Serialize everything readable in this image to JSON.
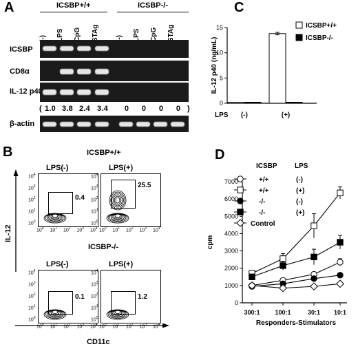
{
  "panelA": {
    "letter": "A",
    "group_wt": "ICSBP+/+",
    "group_ko": "ICSBP-/-",
    "lanes": [
      "(-)",
      "LPS",
      "CpG",
      "STAg",
      "(-)",
      "LPS",
      "CpG",
      "STAg"
    ],
    "rows": [
      "ICSBP",
      "CD8α",
      "IL-12 p40",
      "β-actin"
    ],
    "quant_open": "(",
    "quant": [
      "1.0",
      "3.8",
      "2.4",
      "3.4",
      "0",
      "0",
      "0",
      "0"
    ],
    "quant_close": ")"
  },
  "panelB": {
    "letter": "B",
    "group_wt": "ICSBP+/+",
    "group_ko": "ICSBP-/-",
    "plots": [
      {
        "title": "LPS(-)",
        "value": "0.4"
      },
      {
        "title": "LPS(+)",
        "value": "25.5"
      },
      {
        "title": "LPS(-)",
        "value": "0.1"
      },
      {
        "title": "LPS(+)",
        "value": "1.2"
      }
    ],
    "y_axis": "IL-12",
    "x_axis": "CD11c",
    "tick_base": "10",
    "tick_exps": [
      "0",
      "1",
      "2",
      "3",
      "4"
    ]
  },
  "panelC": {
    "letter": "C",
    "ylabel": "IL-12 p40 (ng/mL)",
    "lps_label": "LPS",
    "legend": [
      "ICSBP+/+",
      "ICSBP-/-"
    ]
  },
  "panelD": {
    "letter": "D",
    "ylabel": "cpm",
    "xlabel": "Responders-Stimulators",
    "header_icsbp": "ICSBP",
    "header_lps": "LPS",
    "legend": [
      {
        "icsbp": "+/+",
        "lps": "(-)"
      },
      {
        "icsbp": "+/+",
        "lps": "(+)"
      },
      {
        "icsbp": "-/-",
        "lps": "(-)"
      },
      {
        "icsbp": "-/-",
        "lps": "(+)"
      },
      {
        "icsbp": "Control",
        "lps": ""
      }
    ]
  },
  "chart_data": [
    {
      "type": "bar",
      "panel": "C",
      "categories": [
        "(-)",
        "(+)"
      ],
      "series": [
        {
          "name": "ICSBP+/+",
          "values": [
            0.2,
            13.8
          ],
          "errors": [
            0,
            0.25
          ]
        },
        {
          "name": "ICSBP-/-",
          "values": [
            0.05,
            0.2
          ],
          "errors": [
            0,
            0
          ]
        }
      ],
      "ylabel": "IL-12 p40 (ng/mL)",
      "xlabel": "LPS",
      "ylim": [
        0,
        15
      ],
      "yticks": [
        0,
        5,
        10,
        15
      ],
      "grid": false,
      "legend": "top-right"
    },
    {
      "type": "line",
      "panel": "D",
      "categories": [
        "300:1",
        "100:1",
        "30:1",
        "10:1"
      ],
      "series": [
        {
          "name": "+/+ (-)",
          "marker": "circle-open",
          "values": [
            1000,
            1300,
            1650,
            2350
          ],
          "errors": [
            60,
            80,
            100,
            200
          ]
        },
        {
          "name": "+/+ (+)",
          "marker": "square-open",
          "values": [
            1700,
            2550,
            4450,
            6350
          ],
          "errors": [
            100,
            300,
            700,
            350
          ]
        },
        {
          "name": "-/- (-)",
          "marker": "circle-filled",
          "values": [
            950,
            1100,
            1400,
            1600
          ],
          "errors": [
            50,
            60,
            80,
            90
          ]
        },
        {
          "name": "-/- (+)",
          "marker": "square-filled",
          "values": [
            1500,
            2150,
            2650,
            3500
          ],
          "errors": [
            100,
            250,
            450,
            400
          ]
        },
        {
          "name": "Control",
          "marker": "diamond-open",
          "values": [
            1000,
            850,
            950,
            1100
          ],
          "errors": [
            40,
            50,
            50,
            50
          ]
        }
      ],
      "ylabel": "cpm",
      "xlabel": "Responders-Stimulators",
      "ylim": [
        0,
        7000
      ],
      "yticks": [
        0,
        1000,
        2000,
        3000,
        4000,
        5000,
        6000,
        7000
      ],
      "grid": false
    }
  ]
}
